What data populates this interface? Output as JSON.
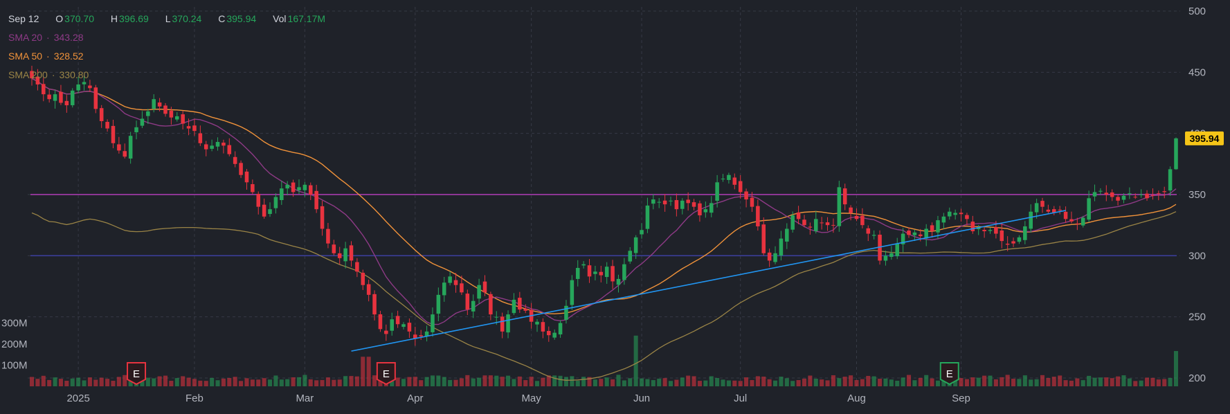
{
  "legend": {
    "date": "Sep 12",
    "open_label": "O",
    "open": "370.70",
    "high_label": "H",
    "high": "396.69",
    "low_label": "L",
    "low": "370.24",
    "close_label": "C",
    "close": "395.94",
    "vol_label": "Vol",
    "vol": "167.17M",
    "sma20_label": "SMA 20",
    "sma20_value": "343.28",
    "sma50_label": "SMA 50",
    "sma50_value": "328.52",
    "sma200_label": "SMA 200",
    "sma200_value": "330.80",
    "separator": "·"
  },
  "price_tag": "395.94",
  "colors": {
    "background": "#1f2229",
    "up": "#26a65b",
    "down": "#e8333f",
    "sma20": "#8e3a86",
    "sma50": "#f0923a",
    "sma200": "#9a8446",
    "trendline": "#2196f3",
    "resistance": "#b03cb8",
    "support": "#3b3f9a",
    "price_tag_bg": "#f5c518"
  },
  "chart_data": {
    "type": "candlestick",
    "y_ticks": [
      "500",
      "450",
      "400",
      "350",
      "300",
      "250",
      "200"
    ],
    "y_range": [
      200,
      500
    ],
    "volume_ticks": [
      "300M",
      "200M",
      "100M"
    ],
    "x_ticks": [
      "2025",
      "Feb",
      "Mar",
      "Apr",
      "May",
      "Jun",
      "Jul",
      "Aug",
      "Sep"
    ],
    "earnings_markers": [
      {
        "label": "E",
        "after_index": 18,
        "color": "down"
      },
      {
        "label": "E",
        "after_index": 61,
        "color": "down"
      },
      {
        "label": "E",
        "after_index": 158,
        "color": "up"
      }
    ],
    "horizontal_lines": [
      {
        "value": 350,
        "color": "resistance"
      },
      {
        "value": 300,
        "color": "support"
      }
    ],
    "trendline": {
      "from_index": 55,
      "from_value": 222,
      "to_index": 178,
      "to_value": 337
    },
    "last": {
      "open": 370.7,
      "high": 396.69,
      "low": 370.24,
      "close": 395.94,
      "volume_m": 167.17
    },
    "closes": [
      445,
      440,
      432,
      428,
      432,
      425,
      423,
      435,
      440,
      442,
      437,
      420,
      410,
      404,
      392,
      386,
      381,
      398,
      405,
      412,
      418,
      428,
      422,
      416,
      413,
      414,
      408,
      404,
      402,
      392,
      387,
      390,
      393,
      390,
      383,
      375,
      366,
      360,
      352,
      340,
      332,
      338,
      348,
      355,
      358,
      352,
      356,
      358,
      350,
      338,
      322,
      310,
      302,
      298,
      306,
      296,
      287,
      276,
      268,
      252,
      240,
      236,
      248,
      244,
      244,
      238,
      232,
      234,
      238,
      252,
      268,
      278,
      283,
      276,
      270,
      256,
      263,
      276,
      270,
      252,
      250,
      238,
      252,
      264,
      256,
      255,
      246,
      246,
      238,
      235,
      237,
      245,
      259,
      280,
      290,
      293,
      283,
      287,
      284,
      291,
      279,
      281,
      293,
      304,
      315,
      321,
      341,
      346,
      344,
      342,
      345,
      338,
      345,
      343,
      340,
      333,
      338,
      343,
      360,
      363,
      366,
      358,
      352,
      346,
      340,
      324,
      302,
      296,
      302,
      314,
      322,
      333,
      330,
      325,
      323,
      330,
      327,
      325,
      325,
      356,
      342,
      335,
      330,
      325,
      318,
      317,
      296,
      300,
      302,
      310,
      318,
      317,
      319,
      316,
      322,
      320,
      329,
      332,
      336,
      335,
      334,
      330,
      320,
      323,
      320,
      321,
      318,
      312,
      309,
      310,
      315,
      324,
      336,
      343,
      340,
      336,
      335,
      337,
      330,
      328,
      326,
      331,
      347,
      352,
      353,
      350,
      348,
      345,
      349,
      351,
      348,
      350,
      347,
      349,
      351,
      352,
      370.7,
      395.94
    ]
  }
}
